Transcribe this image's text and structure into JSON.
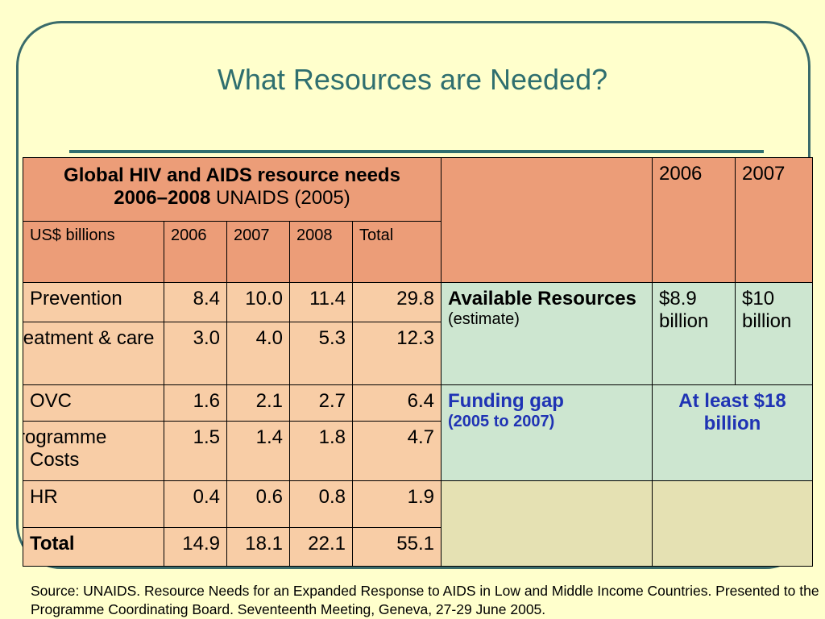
{
  "title": "What Resources are Needed?",
  "left_table": {
    "header_bold": "Global HIV and AIDS resource needs 2006–2008",
    "header_plain": "UNAIDS (2005)",
    "columns": [
      "US$ billions",
      "2006",
      "2007",
      "2008",
      "Total"
    ],
    "rows": [
      {
        "label": "Prevention",
        "values": [
          "8.4",
          "10.0",
          "11.4",
          "29.8"
        ]
      },
      {
        "label": "Treatment & care",
        "values": [
          "3.0",
          "4.0",
          "5.3",
          "12.3"
        ]
      },
      {
        "label": "OVC",
        "values": [
          "1.6",
          "2.1",
          "2.7",
          "6.4"
        ]
      },
      {
        "label": "Programme Costs",
        "values": [
          "1.5",
          "1.4",
          "1.8",
          "4.7"
        ]
      },
      {
        "label": "HR",
        "values": [
          "0.4",
          "0.6",
          "0.8",
          "1.9"
        ]
      },
      {
        "label": "Total",
        "values": [
          "14.9",
          "18.1",
          "22.1",
          "55.1"
        ]
      }
    ]
  },
  "right_table": {
    "years": [
      "2006",
      "2007"
    ],
    "available_label": "Available Resources",
    "available_note": "(estimate)",
    "available_values": [
      "$8.9 billion",
      "$10 billion"
    ],
    "gap_label": "Funding gap",
    "gap_note": "(2005 to 2007)",
    "gap_value": "At least $18 billion"
  },
  "source": "Source: UNAIDS. Resource Needs for an Expanded Response to AIDS in Low and Middle Income Countries. Presented to the Programme Coordinating Board. Seventeenth Meeting, Geneva, 27-29 June 2005.",
  "colors": {
    "background": "#ffffcc",
    "frame": "#3a6b6b",
    "title": "#2f6f6f",
    "header_fill": "#ec9d78",
    "body_fill": "#f8cda6",
    "resource_fill": "#cde6d0",
    "empty_fill": "#e5e1b3",
    "gap_text": "#1f33b4"
  }
}
